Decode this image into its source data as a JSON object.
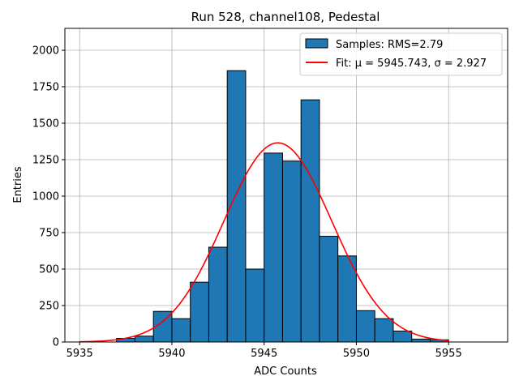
{
  "chart_data": {
    "type": "bar",
    "title": "Run 528, channel108, Pedestal",
    "xlabel": "ADC Counts",
    "ylabel": "Entries",
    "xlim": [
      5934.2,
      5958.2
    ],
    "ylim": [
      0,
      2150
    ],
    "xticks": [
      5935,
      5940,
      5945,
      5950,
      5955
    ],
    "yticks": [
      0,
      250,
      500,
      750,
      1000,
      1250,
      1500,
      1750,
      2000
    ],
    "grid": true,
    "legend_position": "top-right",
    "bin_edges": [
      5937,
      5938,
      5939,
      5940,
      5941,
      5942,
      5943,
      5944,
      5945,
      5946,
      5947,
      5948,
      5949,
      5950,
      5951,
      5952,
      5953,
      5954,
      5955
    ],
    "series": [
      {
        "name": "Samples: RMS=2.79",
        "kind": "histogram",
        "color": "#1f77b4",
        "edgecolor": "#000000",
        "values": [
          25,
          40,
          210,
          160,
          410,
          650,
          1860,
          500,
          1295,
          1240,
          1660,
          725,
          590,
          215,
          160,
          75,
          20,
          15
        ]
      },
      {
        "name": "Fit: μ = 5945.743, σ = 2.927",
        "kind": "gaussian-fit",
        "color": "#ff0000",
        "mu": 5945.743,
        "sigma": 2.927,
        "amplitude": 1365,
        "x_range": [
          5935,
          5955
        ]
      }
    ]
  }
}
